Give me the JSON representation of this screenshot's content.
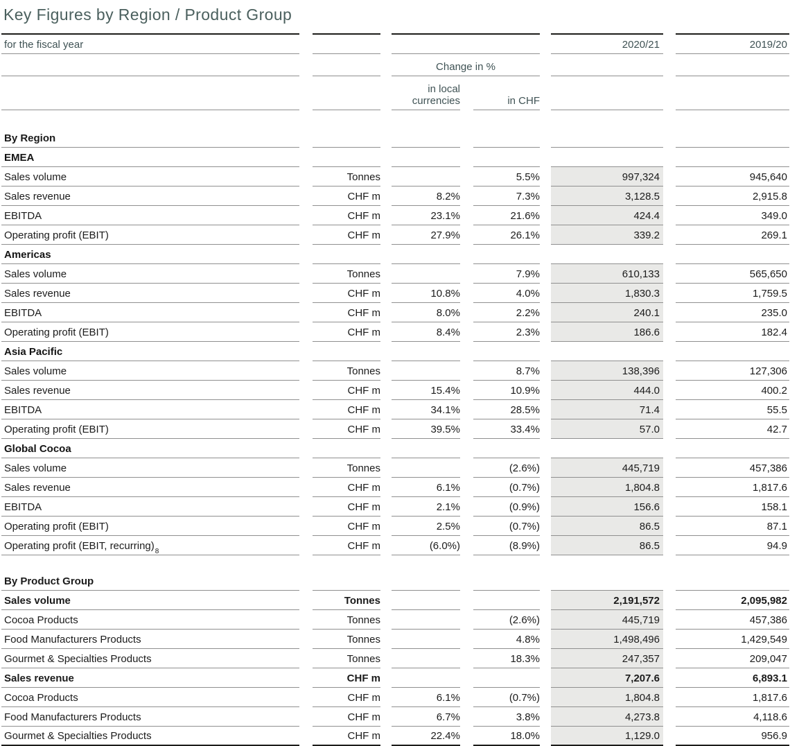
{
  "title": "Key Figures by Region / Product Group",
  "colors": {
    "accent_slate": "#4b605e",
    "header_text": "#3f5254",
    "shaded_column": "#e9e9e7",
    "thin_rule": "#8f8f8f",
    "thick_rule": "#1c1c1a"
  },
  "table": {
    "header": {
      "fiscal_year_label": "for the fiscal year",
      "change_group_label": "Change in %",
      "sub_local_label": "in local currencies",
      "sub_chf_label": "in CHF",
      "year_current": "2020/21",
      "year_prior": "2019/20"
    },
    "rows": [
      {
        "type": "section",
        "label": "By Region",
        "unit": "",
        "local": "",
        "chf": "",
        "cur": "",
        "prior": ""
      },
      {
        "type": "group",
        "label": "EMEA",
        "unit": "",
        "local": "",
        "chf": "",
        "cur": "",
        "prior": ""
      },
      {
        "type": "data",
        "label": "Sales volume",
        "unit": "Tonnes",
        "local": "",
        "chf": "5.5%",
        "cur": "997,324",
        "prior": "945,640"
      },
      {
        "type": "data",
        "label": "Sales revenue",
        "unit": "CHF m",
        "local": "8.2%",
        "chf": "7.3%",
        "cur": "3,128.5",
        "prior": "2,915.8"
      },
      {
        "type": "data",
        "label": "EBITDA",
        "unit": "CHF m",
        "local": "23.1%",
        "chf": "21.6%",
        "cur": "424.4",
        "prior": "349.0"
      },
      {
        "type": "data",
        "label": "Operating profit (EBIT)",
        "unit": "CHF m",
        "local": "27.9%",
        "chf": "26.1%",
        "cur": "339.2",
        "prior": "269.1"
      },
      {
        "type": "group",
        "label": "Americas",
        "unit": "",
        "local": "",
        "chf": "",
        "cur": "",
        "prior": ""
      },
      {
        "type": "data",
        "label": "Sales volume",
        "unit": "Tonnes",
        "local": "",
        "chf": "7.9%",
        "cur": "610,133",
        "prior": "565,650"
      },
      {
        "type": "data",
        "label": "Sales revenue",
        "unit": "CHF m",
        "local": "10.8%",
        "chf": "4.0%",
        "cur": "1,830.3",
        "prior": "1,759.5"
      },
      {
        "type": "data",
        "label": "EBITDA",
        "unit": "CHF m",
        "local": "8.0%",
        "chf": "2.2%",
        "cur": "240.1",
        "prior": "235.0"
      },
      {
        "type": "data",
        "label": "Operating profit (EBIT)",
        "unit": "CHF m",
        "local": "8.4%",
        "chf": "2.3%",
        "cur": "186.6",
        "prior": "182.4"
      },
      {
        "type": "group",
        "label": "Asia Pacific",
        "unit": "",
        "local": "",
        "chf": "",
        "cur": "",
        "prior": ""
      },
      {
        "type": "data",
        "label": "Sales volume",
        "unit": "Tonnes",
        "local": "",
        "chf": "8.7%",
        "cur": "138,396",
        "prior": "127,306"
      },
      {
        "type": "data",
        "label": "Sales revenue",
        "unit": "CHF m",
        "local": "15.4%",
        "chf": "10.9%",
        "cur": "444.0",
        "prior": "400.2"
      },
      {
        "type": "data",
        "label": "EBITDA",
        "unit": "CHF m",
        "local": "34.1%",
        "chf": "28.5%",
        "cur": "71.4",
        "prior": "55.5"
      },
      {
        "type": "data",
        "label": "Operating profit (EBIT)",
        "unit": "CHF m",
        "local": "39.5%",
        "chf": "33.4%",
        "cur": "57.0",
        "prior": "42.7"
      },
      {
        "type": "group",
        "label": "Global Cocoa",
        "unit": "",
        "local": "",
        "chf": "",
        "cur": "",
        "prior": ""
      },
      {
        "type": "data",
        "label": "Sales volume",
        "unit": "Tonnes",
        "local": "",
        "chf": "(2.6%)",
        "cur": "445,719",
        "prior": "457,386"
      },
      {
        "type": "data",
        "label": "Sales revenue",
        "unit": "CHF m",
        "local": "6.1%",
        "chf": "(0.7%)",
        "cur": "1,804.8",
        "prior": "1,817.6"
      },
      {
        "type": "data",
        "label": "EBITDA",
        "unit": "CHF m",
        "local": "2.1%",
        "chf": "(0.9%)",
        "cur": "156.6",
        "prior": "158.1"
      },
      {
        "type": "data",
        "label": "Operating profit (EBIT)",
        "unit": "CHF m",
        "local": "2.5%",
        "chf": "(0.7%)",
        "cur": "86.5",
        "prior": "87.1"
      },
      {
        "type": "data",
        "label": "Operating profit (EBIT, recurring)",
        "sup": "8",
        "unit": "CHF m",
        "local": "(6.0%)",
        "chf": "(8.9%)",
        "cur": "86.5",
        "prior": "94.9"
      },
      {
        "type": "spacer",
        "label": "",
        "unit": "",
        "local": "",
        "chf": "",
        "cur": "",
        "prior": ""
      },
      {
        "type": "section",
        "label": "By Product Group",
        "unit": "",
        "local": "",
        "chf": "",
        "cur": "",
        "prior": ""
      },
      {
        "type": "bold",
        "label": "Sales volume",
        "unit": "Tonnes",
        "local": "",
        "chf": "",
        "cur": "2,191,572",
        "prior": "2,095,982"
      },
      {
        "type": "data",
        "label": "Cocoa Products",
        "unit": "Tonnes",
        "local": "",
        "chf": "(2.6%)",
        "cur": "445,719",
        "prior": "457,386"
      },
      {
        "type": "data",
        "label": "Food Manufacturers Products",
        "unit": "Tonnes",
        "local": "",
        "chf": "4.8%",
        "cur": "1,498,496",
        "prior": "1,429,549"
      },
      {
        "type": "data",
        "label": "Gourmet & Specialties Products",
        "unit": "Tonnes",
        "local": "",
        "chf": "18.3%",
        "cur": "247,357",
        "prior": "209,047"
      },
      {
        "type": "bold",
        "label": "Sales revenue",
        "unit": "CHF m",
        "local": "",
        "chf": "",
        "cur": "7,207.6",
        "prior": "6,893.1"
      },
      {
        "type": "data",
        "label": "Cocoa Products",
        "unit": "CHF m",
        "local": "6.1%",
        "chf": "(0.7%)",
        "cur": "1,804.8",
        "prior": "1,817.6"
      },
      {
        "type": "data",
        "label": "Food Manufacturers Products",
        "unit": "CHF m",
        "local": "6.7%",
        "chf": "3.8%",
        "cur": "4,273.8",
        "prior": "4,118.6"
      },
      {
        "type": "data",
        "label": "Gourmet & Specialties Products",
        "unit": "CHF m",
        "local": "22.4%",
        "chf": "18.0%",
        "cur": "1,129.0",
        "prior": "956.9"
      }
    ]
  }
}
